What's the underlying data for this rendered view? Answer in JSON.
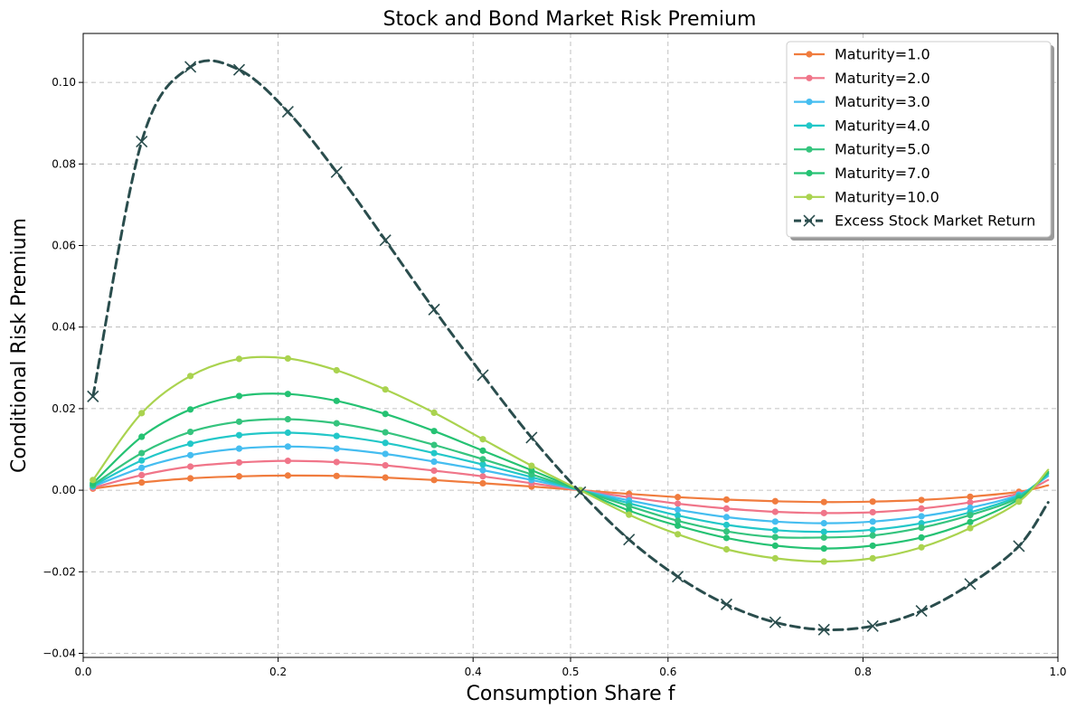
{
  "chart_data": {
    "type": "line",
    "title": "Stock and Bond Market Risk Premium",
    "xlabel": "Consumption Share f",
    "ylabel": "Conditional Risk Premium",
    "xlim": [
      0.0,
      1.0
    ],
    "ylim": [
      -0.041,
      0.112
    ],
    "x_ticks": [
      0.0,
      0.2,
      0.4,
      0.5,
      0.6,
      0.8,
      1.0
    ],
    "x_tick_labels": [
      "0.0",
      "0.2",
      "0.4",
      "0.5",
      "0.6",
      "0.8",
      "1.0"
    ],
    "y_ticks": [
      -0.04,
      -0.02,
      0.0,
      0.02,
      0.04,
      0.06,
      0.08,
      0.1
    ],
    "y_tick_labels": [
      "−0.04",
      "−0.02",
      "0.00",
      "0.02",
      "0.04",
      "0.06",
      "0.08",
      "0.10"
    ],
    "grid": true,
    "legend_position": "top-right",
    "x": [
      0.01,
      0.06,
      0.11,
      0.16,
      0.21,
      0.26,
      0.31,
      0.36,
      0.41,
      0.46,
      0.51,
      0.56,
      0.61,
      0.66,
      0.71,
      0.76,
      0.81,
      0.86,
      0.91,
      0.96
    ],
    "series": [
      {
        "name": "Maturity=1.0",
        "color": "#f07c3e",
        "style": "solid",
        "marker": "circle",
        "values": [
          0.0004,
          0.0019,
          0.0029,
          0.0034,
          0.0036,
          0.0035,
          0.0031,
          0.0025,
          0.0017,
          0.0009,
          0.0,
          -0.0009,
          -0.0017,
          -0.0023,
          -0.0027,
          -0.0029,
          -0.0028,
          -0.0024,
          -0.0016,
          -0.0004
        ],
        "end": [
          0.99,
          0.0012
        ]
      },
      {
        "name": "Maturity=2.0",
        "color": "#f07589",
        "style": "solid",
        "marker": "circle",
        "values": [
          0.0006,
          0.0037,
          0.0058,
          0.0068,
          0.0072,
          0.0069,
          0.0061,
          0.0048,
          0.0034,
          0.0017,
          0.0,
          -0.0017,
          -0.0033,
          -0.0045,
          -0.0053,
          -0.0056,
          -0.0054,
          -0.0045,
          -0.003,
          -0.0008
        ],
        "end": [
          0.99,
          0.0025
        ]
      },
      {
        "name": "Maturity=3.0",
        "color": "#45bdf0",
        "style": "solid",
        "marker": "circle",
        "values": [
          0.0009,
          0.0055,
          0.0086,
          0.0102,
          0.0107,
          0.0102,
          0.0089,
          0.007,
          0.0049,
          0.0025,
          0.0,
          -0.0025,
          -0.0048,
          -0.0066,
          -0.0077,
          -0.0081,
          -0.0077,
          -0.0064,
          -0.0043,
          -0.0011
        ],
        "end": [
          0.99,
          0.0035
        ]
      },
      {
        "name": "Maturity=4.0",
        "color": "#22c7c8",
        "style": "solid",
        "marker": "circle",
        "values": [
          0.0011,
          0.0073,
          0.0114,
          0.0135,
          0.0141,
          0.0133,
          0.0116,
          0.0091,
          0.0063,
          0.0032,
          0.0,
          -0.0032,
          -0.0062,
          -0.0085,
          -0.0098,
          -0.0102,
          -0.0097,
          -0.0081,
          -0.0054,
          -0.0014
        ],
        "end": [
          0.99,
          0.004
        ]
      },
      {
        "name": "Maturity=5.0",
        "color": "#35c47e",
        "style": "solid",
        "marker": "circle",
        "values": [
          0.0013,
          0.0091,
          0.0143,
          0.0168,
          0.0174,
          0.0164,
          0.0142,
          0.0111,
          0.0076,
          0.0039,
          0.0,
          -0.0039,
          -0.0075,
          -0.0101,
          -0.0115,
          -0.0116,
          -0.0111,
          -0.0092,
          -0.0061,
          -0.0018
        ],
        "end": [
          0.99,
          0.0042
        ]
      },
      {
        "name": "Maturity=7.0",
        "color": "#25c273",
        "style": "solid",
        "marker": "circle",
        "values": [
          0.0017,
          0.0131,
          0.0198,
          0.0231,
          0.0236,
          0.0219,
          0.0187,
          0.0145,
          0.0097,
          0.0049,
          0.0,
          -0.005,
          -0.0087,
          -0.0117,
          -0.0136,
          -0.0143,
          -0.0136,
          -0.0116,
          -0.0078,
          -0.0022
        ],
        "end": [
          0.99,
          0.0045
        ]
      },
      {
        "name": "Maturity=10.0",
        "color": "#aad34f",
        "style": "solid",
        "marker": "circle",
        "values": [
          0.0025,
          0.0189,
          0.028,
          0.0322,
          0.0323,
          0.0294,
          0.0247,
          0.019,
          0.0125,
          0.006,
          0.0,
          -0.006,
          -0.0108,
          -0.0145,
          -0.0167,
          -0.0175,
          -0.0167,
          -0.014,
          -0.0093,
          -0.0028
        ],
        "end": [
          0.99,
          0.005
        ]
      },
      {
        "name": "Excess Stock Market Return",
        "color": "#2a4d4d",
        "style": "dashed",
        "marker": "x",
        "values": [
          0.023,
          0.0855,
          0.1038,
          0.1031,
          0.0928,
          0.078,
          0.0613,
          0.0443,
          0.0282,
          0.0129,
          -0.0005,
          -0.0121,
          -0.0212,
          -0.028,
          -0.0324,
          -0.0342,
          -0.0333,
          -0.0296,
          -0.023,
          -0.0137
        ],
        "end": [
          0.99,
          -0.003
        ]
      }
    ]
  }
}
